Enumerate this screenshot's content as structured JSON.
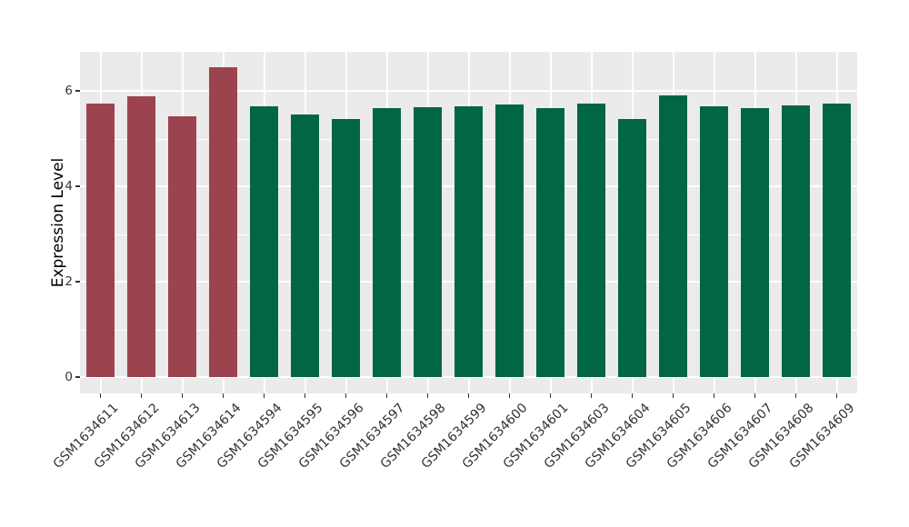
{
  "chart_data": {
    "type": "bar",
    "title": "",
    "xlabel": "",
    "ylabel": "Expression Level",
    "ylim": [
      0,
      6.82
    ],
    "yticks": [
      0,
      2,
      4,
      6
    ],
    "grid": true,
    "legend": false,
    "x_tick_rotation": 45,
    "categories": [
      "GSM1634611",
      "GSM1634612",
      "GSM1634613",
      "GSM1634614",
      "GSM1634594",
      "GSM1634595",
      "GSM1634596",
      "GSM1634597",
      "GSM1634598",
      "GSM1634599",
      "GSM1634600",
      "GSM1634601",
      "GSM1634603",
      "GSM1634604",
      "GSM1634605",
      "GSM1634606",
      "GSM1634607",
      "GSM1634608",
      "GSM1634609"
    ],
    "values": [
      5.73,
      5.89,
      5.47,
      6.5,
      5.68,
      5.51,
      5.41,
      5.64,
      5.66,
      5.67,
      5.71,
      5.64,
      5.74,
      5.41,
      5.91,
      5.68,
      5.64,
      5.7,
      5.73
    ],
    "bar_groups": [
      "highlight",
      "highlight",
      "highlight",
      "highlight",
      "normal",
      "normal",
      "normal",
      "normal",
      "normal",
      "normal",
      "normal",
      "normal",
      "normal",
      "normal",
      "normal",
      "normal",
      "normal",
      "normal",
      "normal"
    ],
    "group_colors": {
      "highlight": "#9B4450",
      "normal": "#006646"
    }
  },
  "style": {
    "figure_background": "#FFFFFF",
    "panel_background": "#EBEBEB",
    "grid_color": "#FFFFFF",
    "tick_text_color": "#333333",
    "tick_mark_color": "#333333",
    "axis_title_color": "#000000"
  }
}
